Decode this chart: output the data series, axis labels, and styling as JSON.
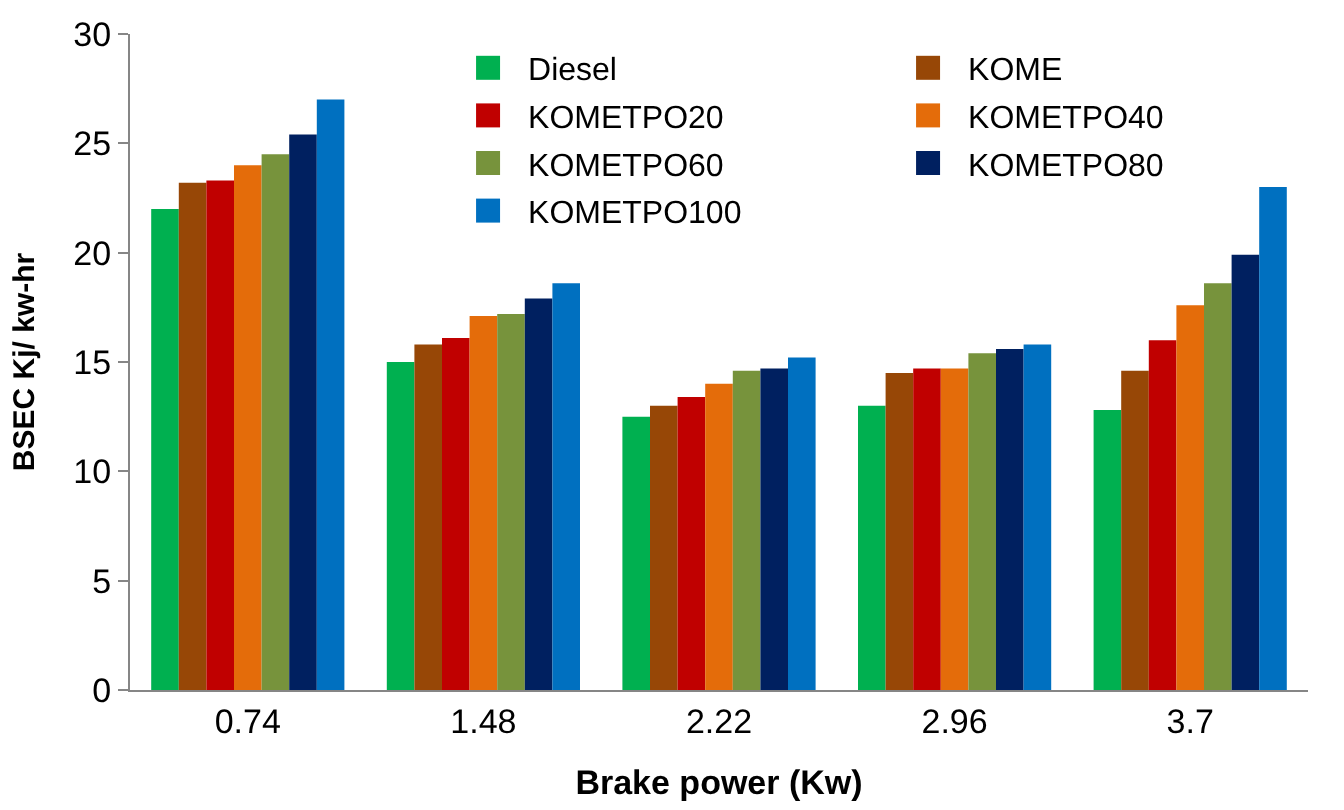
{
  "chart_data": {
    "type": "bar",
    "xlabel": "Brake power (Kw)",
    "ylabel": "BSEC Kj/ kw-hr",
    "categories": [
      "0.74",
      "1.48",
      "2.22",
      "2.96",
      "3.7"
    ],
    "series": [
      {
        "name": "Diesel",
        "color": "#00b050",
        "values": [
          22.0,
          15.0,
          12.5,
          13.0,
          12.8
        ]
      },
      {
        "name": "KOME",
        "color": "#974706",
        "values": [
          23.2,
          15.8,
          13.0,
          14.5,
          14.6
        ]
      },
      {
        "name": "KOMETPO20",
        "color": "#c00000",
        "values": [
          23.3,
          16.1,
          13.4,
          14.7,
          16.0
        ]
      },
      {
        "name": "KOMETPO40",
        "color": "#e46c0a",
        "values": [
          24.0,
          17.1,
          14.0,
          14.7,
          17.6
        ]
      },
      {
        "name": "KOMETPO60",
        "color": "#77933c",
        "values": [
          24.5,
          17.2,
          14.6,
          15.4,
          18.6
        ]
      },
      {
        "name": "KOMETPO80",
        "color": "#002060",
        "values": [
          25.4,
          17.9,
          14.7,
          15.6,
          19.9
        ]
      },
      {
        "name": "KOMETPO100",
        "color": "#0070c0",
        "values": [
          27.0,
          18.6,
          15.2,
          15.8,
          23.0
        ]
      }
    ],
    "ylim": [
      0,
      30
    ],
    "yticks": [
      0,
      5,
      10,
      15,
      20,
      25,
      30
    ],
    "legend": "top"
  }
}
